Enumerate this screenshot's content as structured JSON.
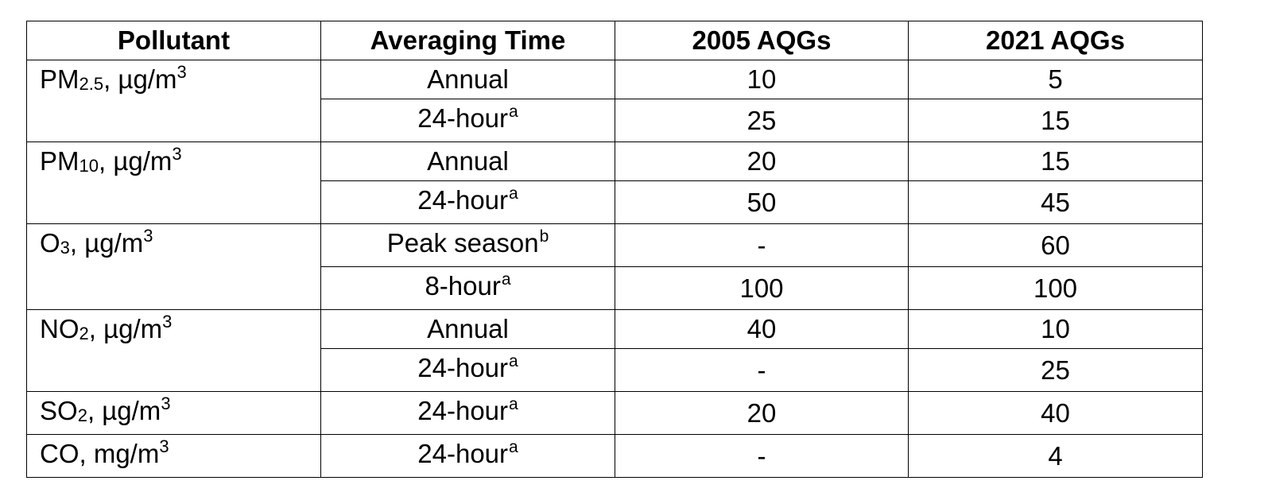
{
  "table": {
    "headers": {
      "pollutant": "Pollutant",
      "averaging_time": "Averaging Time",
      "aqg_2005": "2005 AQGs",
      "aqg_2021": "2021 AQGs"
    },
    "groups": [
      {
        "pollutant": {
          "base": "PM",
          "sub": "2.5",
          "unit": ", µg/m",
          "sup": "3"
        },
        "rows": [
          {
            "time": "Annual",
            "note": "",
            "aqg_2005": "10",
            "aqg_2021": "5"
          },
          {
            "time": "24-hour",
            "note": "a",
            "aqg_2005": "25",
            "aqg_2021": "15"
          }
        ]
      },
      {
        "pollutant": {
          "base": "PM",
          "sub": "10",
          "unit": ", µg/m",
          "sup": "3"
        },
        "rows": [
          {
            "time": "Annual",
            "note": "",
            "aqg_2005": "20",
            "aqg_2021": "15"
          },
          {
            "time": "24-hour",
            "note": "a",
            "aqg_2005": "50",
            "aqg_2021": "45"
          }
        ]
      },
      {
        "pollutant": {
          "base": "O",
          "sub": "3",
          "unit": ", µg/m",
          "sup": "3"
        },
        "rows": [
          {
            "time": "Peak season",
            "note": "b",
            "aqg_2005": "-",
            "aqg_2021": "60"
          },
          {
            "time": "8-hour",
            "note": "a",
            "aqg_2005": "100",
            "aqg_2021": "100"
          }
        ]
      },
      {
        "pollutant": {
          "base": "NO",
          "sub": "2",
          "unit": ", µg/m",
          "sup": "3"
        },
        "rows": [
          {
            "time": "Annual",
            "note": "",
            "aqg_2005": "40",
            "aqg_2021": "10"
          },
          {
            "time": "24-hour",
            "note": "a",
            "aqg_2005": "-",
            "aqg_2021": "25"
          }
        ]
      },
      {
        "pollutant": {
          "base": "SO",
          "sub": "2",
          "unit": ", µg/m",
          "sup": "3"
        },
        "rows": [
          {
            "time": "24-hour",
            "note": "a",
            "aqg_2005": "20",
            "aqg_2021": "40"
          }
        ]
      },
      {
        "pollutant": {
          "base": "CO",
          "sub": "",
          "unit": ", mg/m",
          "sup": "3"
        },
        "rows": [
          {
            "time": "24-hour",
            "note": "a",
            "aqg_2005": "-",
            "aqg_2021": "4"
          }
        ]
      }
    ]
  }
}
